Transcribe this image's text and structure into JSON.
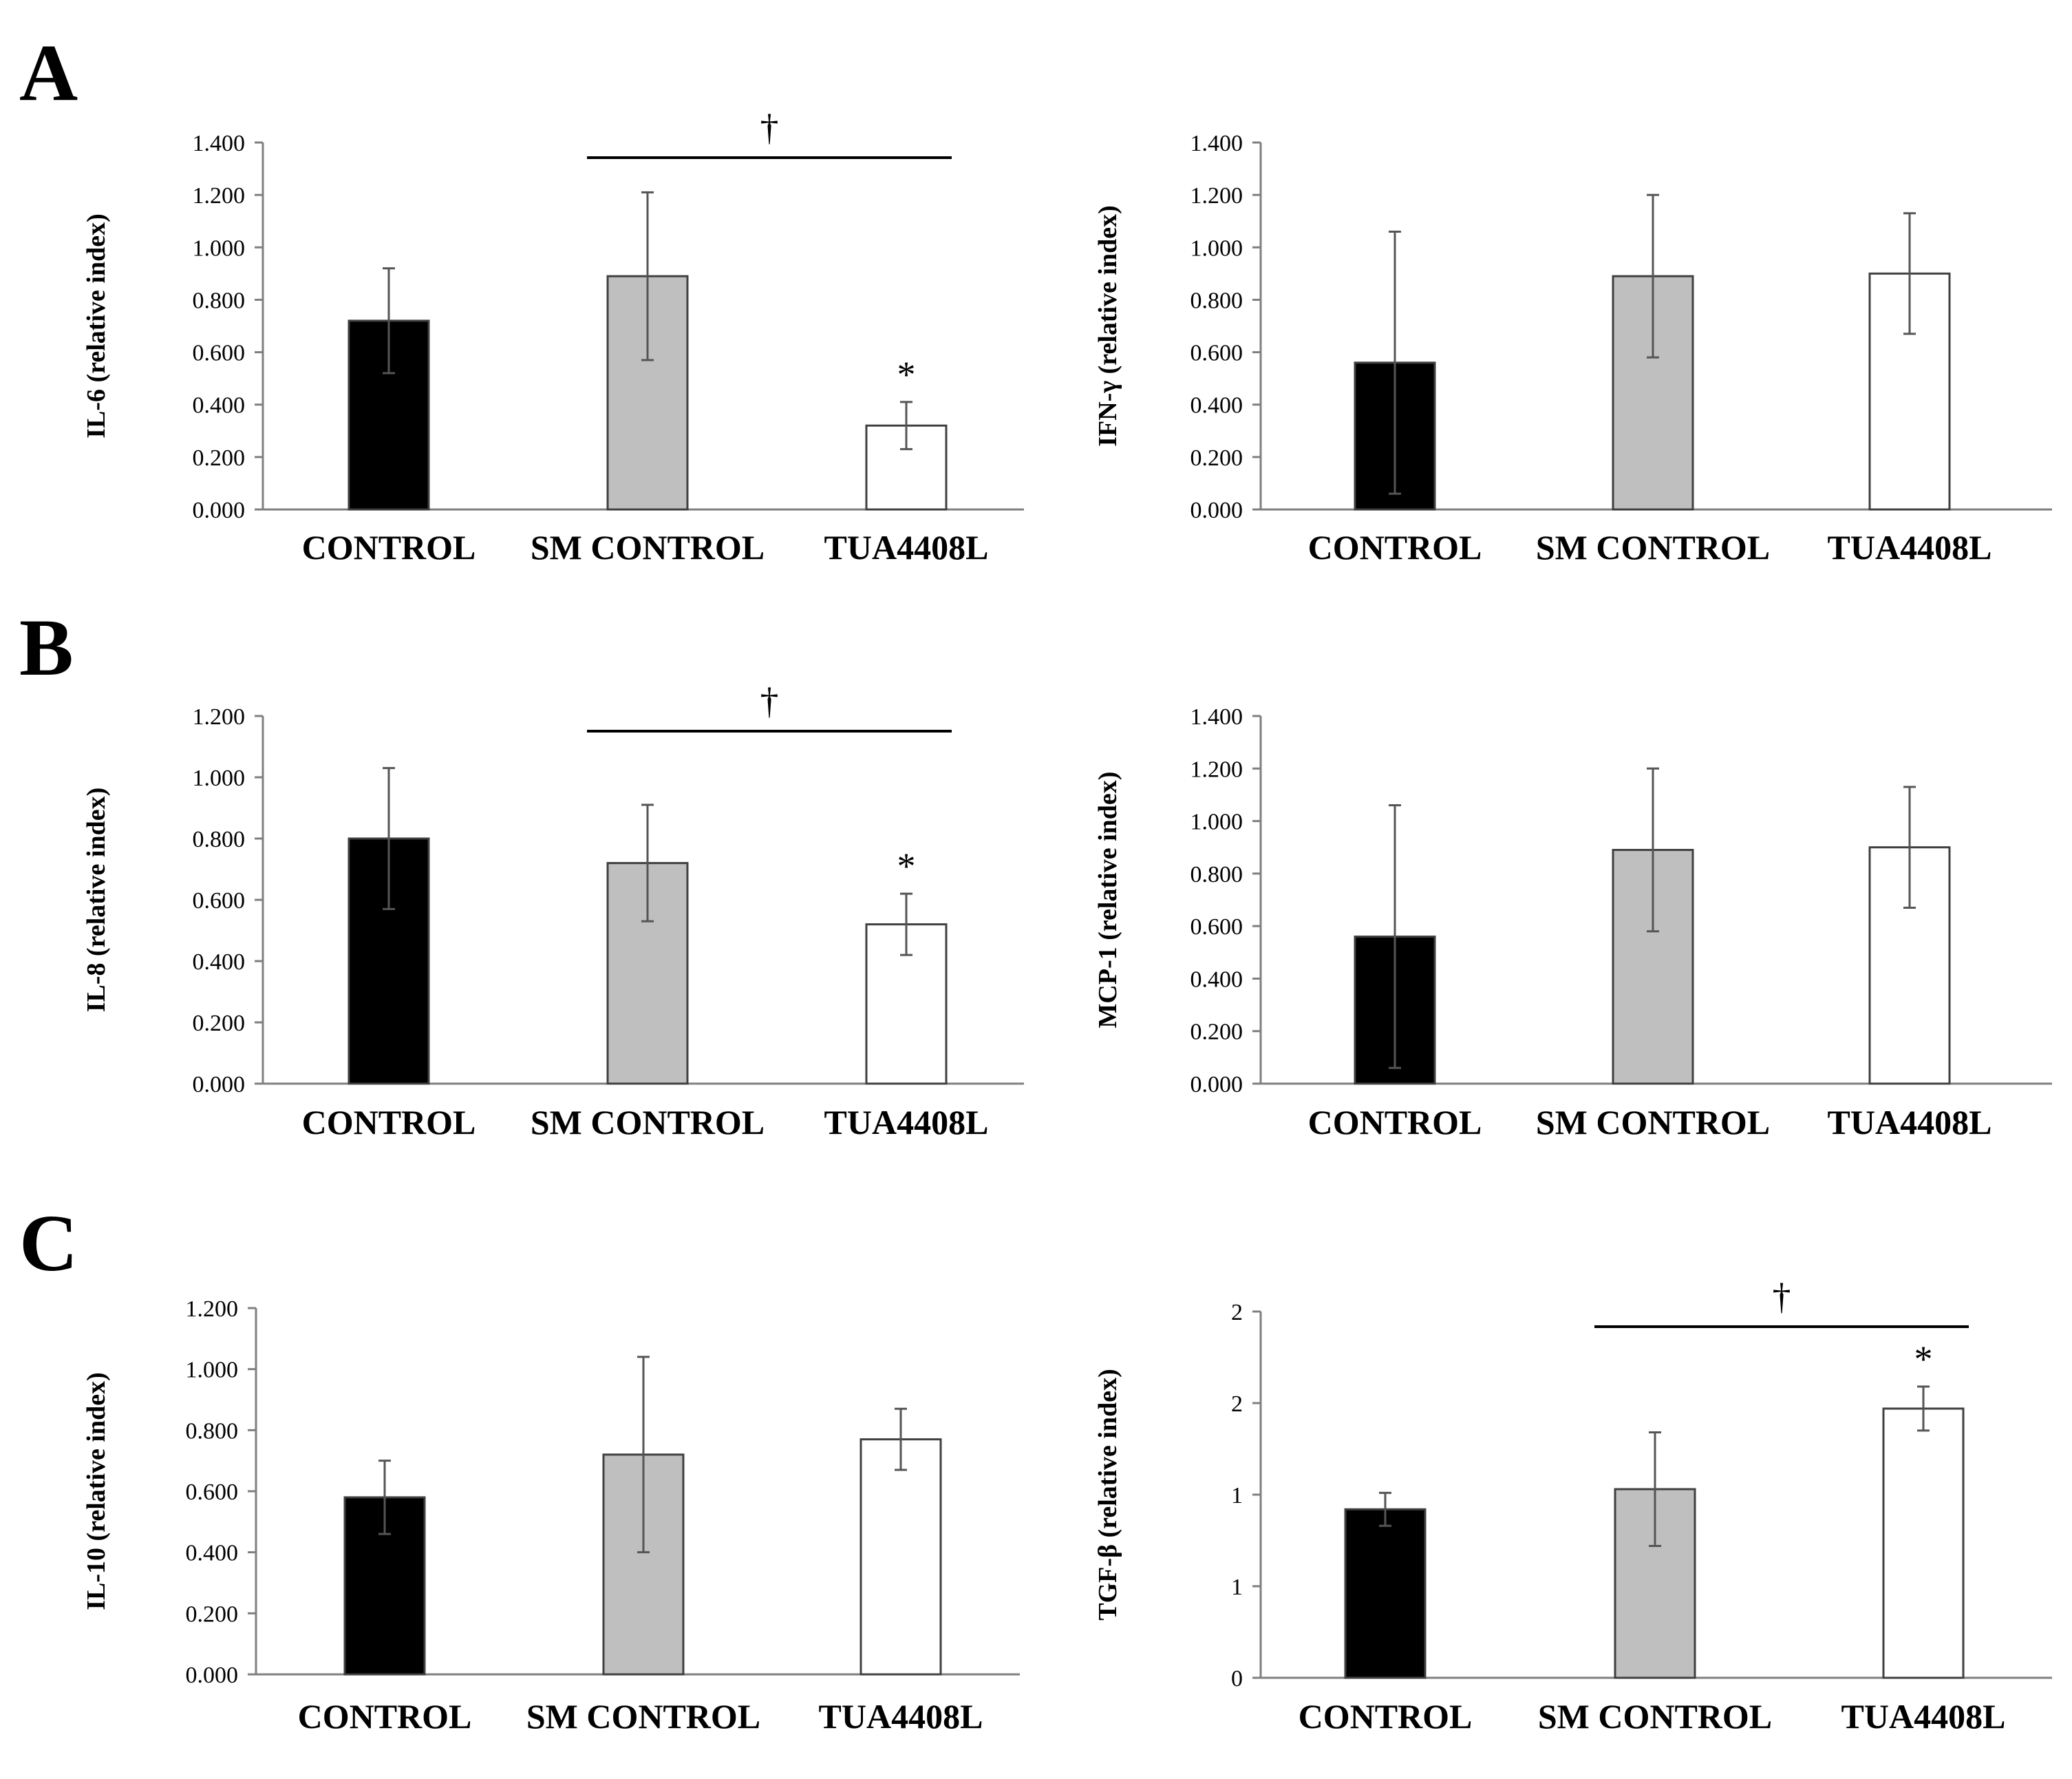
{
  "panel_letters": [
    "A",
    "B",
    "C"
  ],
  "colors": {
    "control": "#000000",
    "sm_control": "#bfbfbf",
    "tua4408l": "#ffffff",
    "stroke": "#404040"
  },
  "chart_data": [
    {
      "type": "bar",
      "panel": "A",
      "ylabel": "IL-6 (relative index)",
      "categories": [
        "CONTROL",
        "SM CONTROL",
        "TUA4408L"
      ],
      "values": [
        0.72,
        0.89,
        0.32
      ],
      "errors": [
        0.2,
        0.32,
        0.09
      ],
      "ylim": [
        0,
        1.4
      ],
      "yticks": [
        0,
        0.2,
        0.4,
        0.6,
        0.8,
        1.0,
        1.2,
        1.4
      ],
      "tick_decimals": 3,
      "dagger": {
        "from": 1,
        "to": 2,
        "symbol": "†"
      },
      "asterisk_index": 2
    },
    {
      "type": "bar",
      "panel": "A",
      "ylabel": "IFN-γ (relative index)",
      "categories": [
        "CONTROL",
        "SM CONTROL",
        "TUA4408L"
      ],
      "values": [
        0.56,
        0.89,
        0.9
      ],
      "errors": [
        0.5,
        0.31,
        0.23
      ],
      "ylim": [
        0,
        1.4
      ],
      "yticks": [
        0,
        0.2,
        0.4,
        0.6,
        0.8,
        1.0,
        1.2,
        1.4
      ],
      "tick_decimals": 3
    },
    {
      "type": "bar",
      "panel": "B",
      "ylabel": "IL-8 (relative index)",
      "categories": [
        "CONTROL",
        "SM CONTROL",
        "TUA4408L"
      ],
      "values": [
        0.8,
        0.72,
        0.52
      ],
      "errors": [
        0.23,
        0.19,
        0.1
      ],
      "ylim": [
        0,
        1.2
      ],
      "yticks": [
        0,
        0.2,
        0.4,
        0.6,
        0.8,
        1.0,
        1.2
      ],
      "tick_decimals": 3,
      "dagger": {
        "from": 1,
        "to": 2,
        "symbol": "†"
      },
      "asterisk_index": 2
    },
    {
      "type": "bar",
      "panel": "B",
      "ylabel": "MCP-1 (relative index)",
      "categories": [
        "CONTROL",
        "SM CONTROL",
        "TUA4408L"
      ],
      "values": [
        0.56,
        0.89,
        0.9
      ],
      "errors": [
        0.5,
        0.31,
        0.23
      ],
      "ylim": [
        0,
        1.4
      ],
      "yticks": [
        0,
        0.2,
        0.4,
        0.6,
        0.8,
        1.0,
        1.2,
        1.4
      ],
      "tick_decimals": 3
    },
    {
      "type": "bar",
      "panel": "C",
      "ylabel": "IL-10 (relative index)",
      "categories": [
        "CONTROL",
        "SM CONTROL",
        "TUA4408L"
      ],
      "values": [
        0.58,
        0.72,
        0.77
      ],
      "errors": [
        0.12,
        0.32,
        0.1
      ],
      "ylim": [
        0,
        1.2
      ],
      "yticks": [
        0,
        0.2,
        0.4,
        0.6,
        0.8,
        1.0,
        1.2
      ],
      "tick_decimals": 3
    },
    {
      "type": "bar",
      "panel": "C",
      "ylabel": "TGF-β (relative index)",
      "categories": [
        "CONTROL",
        "SM CONTROL",
        "TUA4408L"
      ],
      "values": [
        0.92,
        1.03,
        1.47
      ],
      "errors": [
        0.09,
        0.31,
        0.12
      ],
      "ylim": [
        0,
        2
      ],
      "yticks": [
        0,
        0.5,
        1,
        1.5,
        2
      ],
      "tick_decimals": 0,
      "dagger": {
        "from": 1,
        "to": 2,
        "symbol": "†"
      },
      "asterisk_index": 2
    }
  ]
}
